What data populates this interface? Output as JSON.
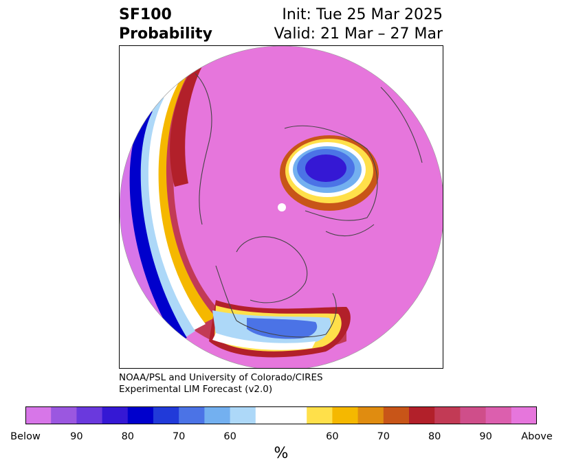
{
  "header": {
    "variable": "SF100",
    "product": "Probability",
    "init": "Init: Tue 25 Mar 2025",
    "valid": "Valid: 21 Mar – 27 Mar"
  },
  "credit": {
    "line1": "NOAA/PSL and University of Colorado/CIRES",
    "line2": "Experimental LIM Forecast (v2.0)"
  },
  "colorbar": {
    "unit": "%",
    "colors": [
      "#d776e8",
      "#9b57e0",
      "#6a39dd",
      "#3518d4",
      "#0000cc",
      "#213ad9",
      "#4b73e6",
      "#73b0f0",
      "#add8f8",
      "#ffffff",
      "#ffffff",
      "#ffe04a",
      "#f5b800",
      "#e08c10",
      "#c85518",
      "#b2202a",
      "#c23a55",
      "#cf4e8a",
      "#dc5fae",
      "#e676dc"
    ],
    "tick_labels": [
      "Below",
      "90",
      "80",
      "70",
      "60",
      "60",
      "70",
      "80",
      "90",
      "Above"
    ]
  },
  "map": {
    "projection": "north-polar-stereographic",
    "colors": {
      "above": "#e676dc",
      "above_mid": "#dc5fae",
      "red": "#b2202a",
      "orange": "#e08c10",
      "yellow": "#ffe04a",
      "light_blue": "#add8f8",
      "mid_blue": "#4b73e6",
      "dark_blue": "#0000cc",
      "below": "#d776e8",
      "border": "#444444"
    }
  }
}
